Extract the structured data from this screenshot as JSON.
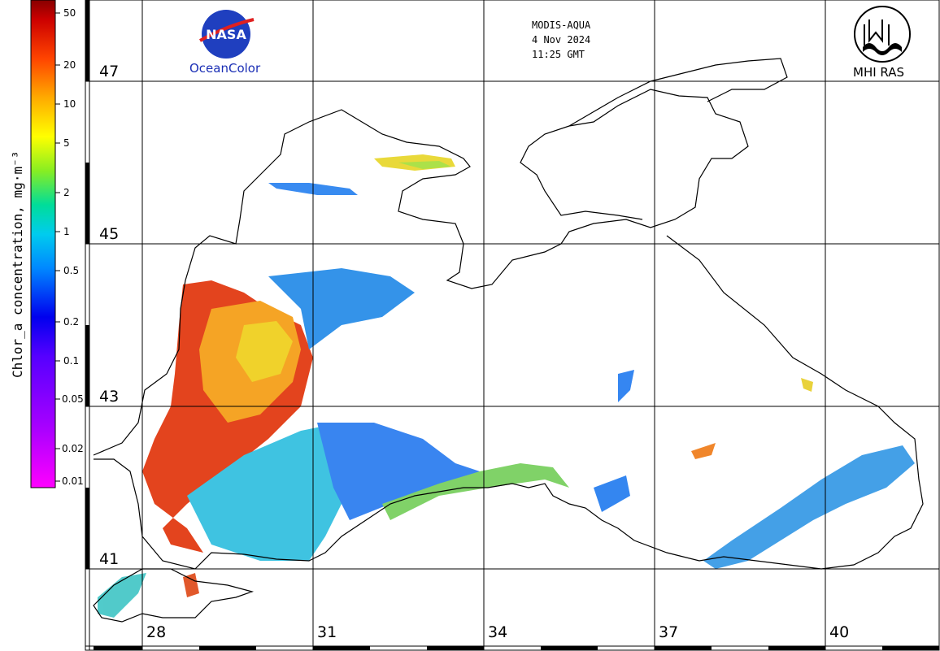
{
  "header": {
    "sensor": "MODIS-AQUA",
    "date": "4 Nov 2024",
    "time": "11:25 GMT"
  },
  "logos": {
    "left_text": "NASA",
    "left_caption": "OceanColor",
    "right_caption": "MHI RAS"
  },
  "colorbar": {
    "title": "Chlor_a concentration, mg·m⁻³",
    "ticks": [
      "50",
      "20",
      "10",
      "5",
      "2",
      "1",
      "0.5",
      "0.2",
      "0.1",
      "0.05",
      "0.02",
      "0.01"
    ],
    "scale": "log",
    "colors": [
      "#ff00ff",
      "#8800ff",
      "#0000ff",
      "#00aaff",
      "#00e5e5",
      "#00dd88",
      "#aaee00",
      "#ffff00",
      "#ffaa00",
      "#ff3300",
      "#880000"
    ]
  },
  "grid": {
    "latitudes": [
      "47",
      "45",
      "43",
      "41"
    ],
    "longitudes": [
      "28",
      "31",
      "34",
      "37",
      "40"
    ]
  },
  "colors": {
    "coastline": "#000000",
    "gridline": "#000000",
    "land": "#ffffff"
  }
}
